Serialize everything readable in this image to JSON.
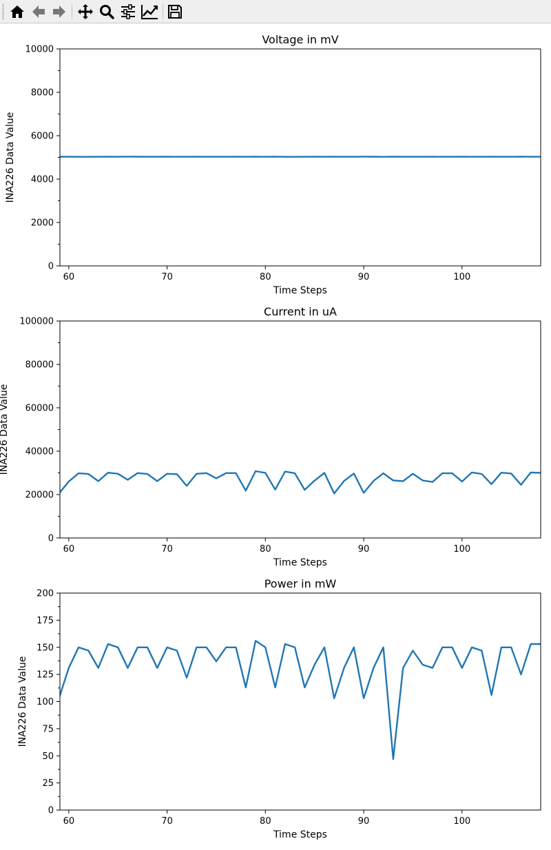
{
  "toolbar": {
    "buttons": [
      {
        "name": "home-button",
        "icon": "home-icon",
        "enabled": true
      },
      {
        "name": "back-button",
        "icon": "arrow-left-icon",
        "enabled": false
      },
      {
        "name": "forward-button",
        "icon": "arrow-right-icon",
        "enabled": false
      },
      {
        "name": "pan-button",
        "icon": "move-icon",
        "enabled": true
      },
      {
        "name": "zoom-button",
        "icon": "magnifier-icon",
        "enabled": true
      },
      {
        "name": "subplots-button",
        "icon": "sliders-icon",
        "enabled": true
      },
      {
        "name": "edit-axis-button",
        "icon": "chart-line-icon",
        "enabled": true
      },
      {
        "name": "save-button",
        "icon": "floppy-disk-icon",
        "enabled": true
      }
    ]
  },
  "colors": {
    "line": "#1f77b4",
    "axis": "#000000",
    "toolbar_bg": "#efefef"
  },
  "chart_data": [
    {
      "type": "line",
      "title": "Voltage in mV",
      "xlabel": "Time Steps",
      "ylabel": "INA226 Data Value",
      "xlim": [
        59.1,
        108
      ],
      "ylim": [
        0,
        10000
      ],
      "xticks": [
        60,
        70,
        80,
        90,
        100
      ],
      "yticks": [
        0,
        2000,
        4000,
        6000,
        8000,
        10000
      ],
      "yminor": 1000,
      "x": [
        59,
        60,
        61,
        62,
        63,
        64,
        65,
        66,
        67,
        68,
        69,
        70,
        71,
        72,
        73,
        74,
        75,
        76,
        77,
        78,
        79,
        80,
        81,
        82,
        83,
        84,
        85,
        86,
        87,
        88,
        89,
        90,
        91,
        92,
        93,
        94,
        95,
        96,
        97,
        98,
        99,
        100,
        101,
        102,
        103,
        104,
        105,
        106,
        107,
        108
      ],
      "series": [
        {
          "name": "Voltage",
          "values": [
            5032,
            5030,
            5024,
            5024,
            5028,
            5032,
            5030,
            5034,
            5032,
            5028,
            5030,
            5032,
            5028,
            5030,
            5032,
            5028,
            5028,
            5030,
            5032,
            5030,
            5032,
            5030,
            5036,
            5024,
            5026,
            5030,
            5032,
            5028,
            5034,
            5030,
            5028,
            5034,
            5032,
            5026,
            5034,
            5030,
            5028,
            5030,
            5032,
            5028,
            5030,
            5032,
            5030,
            5028,
            5032,
            5028,
            5030,
            5034,
            5028,
            5030
          ]
        }
      ]
    },
    {
      "type": "line",
      "title": "Current in uA",
      "xlabel": "Time Steps",
      "ylabel": "INA226 Data Value",
      "xlim": [
        59.1,
        108
      ],
      "ylim": [
        0,
        100000
      ],
      "xticks": [
        60,
        70,
        80,
        90,
        100
      ],
      "yticks": [
        0,
        20000,
        40000,
        60000,
        80000,
        100000
      ],
      "yminor": 10000,
      "x": [
        59,
        60,
        61,
        62,
        63,
        64,
        65,
        66,
        67,
        68,
        69,
        70,
        71,
        72,
        73,
        74,
        75,
        76,
        77,
        78,
        79,
        80,
        81,
        82,
        83,
        84,
        85,
        86,
        87,
        88,
        89,
        90,
        91,
        92,
        93,
        94,
        95,
        96,
        97,
        98,
        99,
        100,
        101,
        102,
        103,
        104,
        105,
        106,
        107,
        108
      ],
      "series": [
        {
          "name": "Current",
          "values": [
            20500,
            26000,
            29800,
            29500,
            26200,
            30100,
            29600,
            26800,
            29900,
            29500,
            26200,
            29600,
            29400,
            24000,
            29600,
            29900,
            27500,
            29900,
            29900,
            21800,
            30800,
            30000,
            22300,
            30600,
            29800,
            22200,
            26400,
            30000,
            20500,
            26300,
            29700,
            20800,
            26300,
            29800,
            26500,
            26200,
            29600,
            26500,
            25800,
            29800,
            29800,
            26000,
            30200,
            29500,
            24800,
            30100,
            29700,
            24500,
            30200,
            30000
          ]
        }
      ]
    },
    {
      "type": "line",
      "title": "Power in mW",
      "xlabel": "Time Steps",
      "ylabel": "INA226 Data Value",
      "xlim": [
        59.1,
        108
      ],
      "ylim": [
        0,
        200
      ],
      "xticks": [
        60,
        70,
        80,
        90,
        100
      ],
      "yticks": [
        0,
        25,
        50,
        75,
        100,
        125,
        150,
        175,
        200
      ],
      "yminor": 12.5,
      "x": [
        59,
        60,
        61,
        62,
        63,
        64,
        65,
        66,
        67,
        68,
        69,
        70,
        71,
        72,
        73,
        74,
        75,
        76,
        77,
        78,
        79,
        80,
        81,
        82,
        83,
        84,
        85,
        86,
        87,
        88,
        89,
        90,
        91,
        92,
        93,
        94,
        95,
        96,
        97,
        98,
        99,
        100,
        101,
        102,
        103,
        104,
        105,
        106,
        107,
        108
      ],
      "series": [
        {
          "name": "Power",
          "values": [
            103,
            131,
            150,
            147,
            131,
            153,
            150,
            131,
            150,
            150,
            131,
            150,
            147,
            122,
            150,
            150,
            137,
            150,
            150,
            113,
            156,
            150,
            113,
            153,
            150,
            113,
            134,
            150,
            103,
            131,
            150,
            103,
            131,
            150,
            47,
            131,
            147,
            134,
            131,
            150,
            150,
            131,
            150,
            147,
            106,
            150,
            150,
            125,
            153,
            153
          ]
        }
      ]
    }
  ]
}
